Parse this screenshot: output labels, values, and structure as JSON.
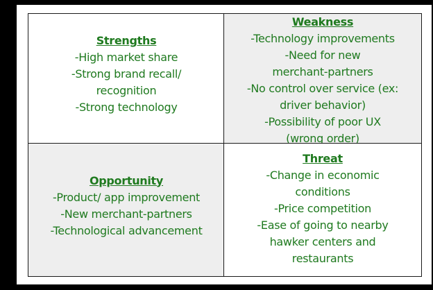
{
  "swot": {
    "strengths": {
      "title": "Strengths",
      "items": [
        "-High market share",
        "-Strong brand recall/",
        "recognition",
        "-Strong technology"
      ]
    },
    "weakness": {
      "title": "Weakness",
      "items": [
        "-Technology  improvements",
        "-Need for new",
        "merchant-partners",
        "-No control over service (ex:",
        "driver behavior)",
        "-Possibility of poor UX",
        "(wrong order)"
      ]
    },
    "opportunity": {
      "title": "Opportunity",
      "items": [
        "-Product/ app improvement",
        "-New merchant-partners",
        "-Technological  advancement"
      ]
    },
    "threat": {
      "title": "Threat",
      "items": [
        "-Change in economic",
        "conditions",
        "-Price competition",
        "-Ease of going to nearby",
        "hawker centers and",
        "restaurants"
      ]
    }
  },
  "colors": {
    "text": "#1f7a1f",
    "border": "#1a1a1a",
    "shaded_cell": "#eeeeee",
    "background": "#000000"
  }
}
